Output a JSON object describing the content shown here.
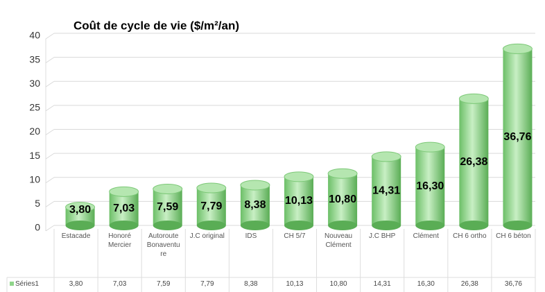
{
  "chart_data": {
    "type": "bar",
    "title": "Coût de cycle de vie ($/m²/an)",
    "categories": [
      "Estacade",
      "Honoré Mercier",
      "Autoroute Bonaventure",
      "J.C original",
      "IDS",
      "CH 5/7",
      "Nouveau Clément",
      "J.C BHP",
      "Clément",
      "CH 6 ortho",
      "CH 6 béton"
    ],
    "series": [
      {
        "name": "Séries1",
        "color": "#8fd48a",
        "values": [
          3.8,
          7.03,
          7.59,
          7.79,
          8.38,
          10.13,
          10.8,
          14.31,
          16.3,
          26.38,
          36.76
        ],
        "value_labels": [
          "3,80",
          "7,03",
          "7,59",
          "7,79",
          "8,38",
          "10,13",
          "10,80",
          "14,31",
          "16,30",
          "26,38",
          "36,76"
        ]
      }
    ],
    "ylim": [
      0,
      40
    ],
    "yticks": [
      0,
      5,
      10,
      15,
      20,
      25,
      30,
      35,
      40
    ],
    "grid": true
  }
}
